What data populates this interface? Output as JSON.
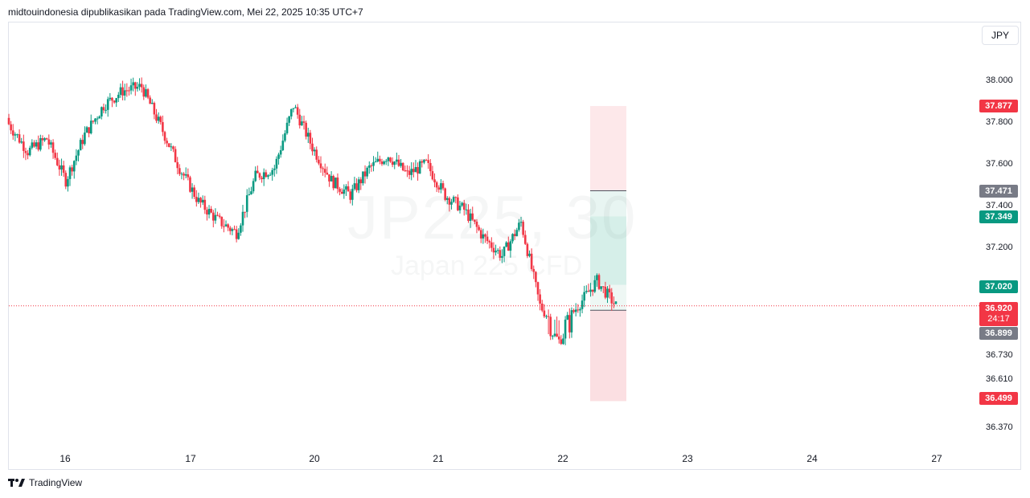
{
  "header": {
    "text": "midtouindonesia dipublikasikan pada TradingView.com, Mei 22, 2025 10:35 UTC+7"
  },
  "currency": "JPY",
  "watermark": {
    "symbol": "JP225, 30",
    "description": "Japan 225 CFD"
  },
  "footer": {
    "brand": "TradingView",
    "logo_icon": "tradingview-logo-icon"
  },
  "colors": {
    "up": "#089981",
    "down": "#f23645",
    "profit_zone": "#d6efe9",
    "loss_zone": "#fbdfe2",
    "neutral": "#787b86"
  },
  "price_tags": {
    "target": "37.877",
    "zone_top": "37.471",
    "take_profit": "37.349",
    "entry": "37.020",
    "current_price": "36.920",
    "countdown": "24:17",
    "stop": "36.899",
    "stop_loss": "36.499"
  },
  "chart_data": {
    "type": "candlestick",
    "symbol": "JP225",
    "interval": "30",
    "y_axis": {
      "ticks": [
        "38.000",
        "37.800",
        "37.600",
        "37.400",
        "37.200",
        "36.730",
        "36.610",
        "36.370"
      ],
      "segments": [
        {
          "from": 36.37,
          "to": 36.85,
          "position": "lower",
          "scale": "compressed"
        },
        {
          "from": 36.85,
          "to": 38.0,
          "position": "upper",
          "scale": "linear"
        }
      ]
    },
    "x_axis": {
      "ticks": [
        "16",
        "17",
        "20",
        "21",
        "22",
        "23",
        "24",
        "27"
      ]
    },
    "current_price": 36.92,
    "series_close": [
      {
        "day": "15",
        "close": 37.79
      },
      {
        "day": "16",
        "close": 37.66
      },
      {
        "day": "16",
        "close": 37.72
      },
      {
        "day": "16",
        "close": 37.52
      },
      {
        "day": "16",
        "close": 37.74
      },
      {
        "day": "16",
        "close": 37.88
      },
      {
        "day": "17",
        "close": 37.95
      },
      {
        "day": "17",
        "close": 37.97
      },
      {
        "day": "17",
        "close": 37.78
      },
      {
        "day": "17",
        "close": 37.58
      },
      {
        "day": "17",
        "close": 37.42
      },
      {
        "day": "19",
        "close": 37.33
      },
      {
        "day": "19",
        "close": 37.27
      },
      {
        "day": "20",
        "close": 37.54
      },
      {
        "day": "20",
        "close": 37.58
      },
      {
        "day": "20",
        "close": 37.88
      },
      {
        "day": "20",
        "close": 37.68
      },
      {
        "day": "20",
        "close": 37.52
      },
      {
        "day": "20",
        "close": 37.45
      },
      {
        "day": "21",
        "close": 37.58
      },
      {
        "day": "21",
        "close": 37.64
      },
      {
        "day": "21",
        "close": 37.55
      },
      {
        "day": "21",
        "close": 37.6
      },
      {
        "day": "21",
        "close": 37.45
      },
      {
        "day": "21",
        "close": 37.38
      },
      {
        "day": "21",
        "close": 37.25
      },
      {
        "day": "22",
        "close": 37.16
      },
      {
        "day": "22",
        "close": 37.32
      },
      {
        "day": "22",
        "close": 36.92
      },
      {
        "day": "22",
        "close": 36.8
      },
      {
        "day": "22",
        "close": 36.92
      },
      {
        "day": "22",
        "close": 37.04
      },
      {
        "day": "22",
        "close": 36.92
      }
    ],
    "position_tool": {
      "entry": 37.02,
      "take_profit": 37.349,
      "zone_top": 37.471,
      "target": 37.877,
      "stop": 36.899,
      "stop_loss": 36.499
    }
  }
}
